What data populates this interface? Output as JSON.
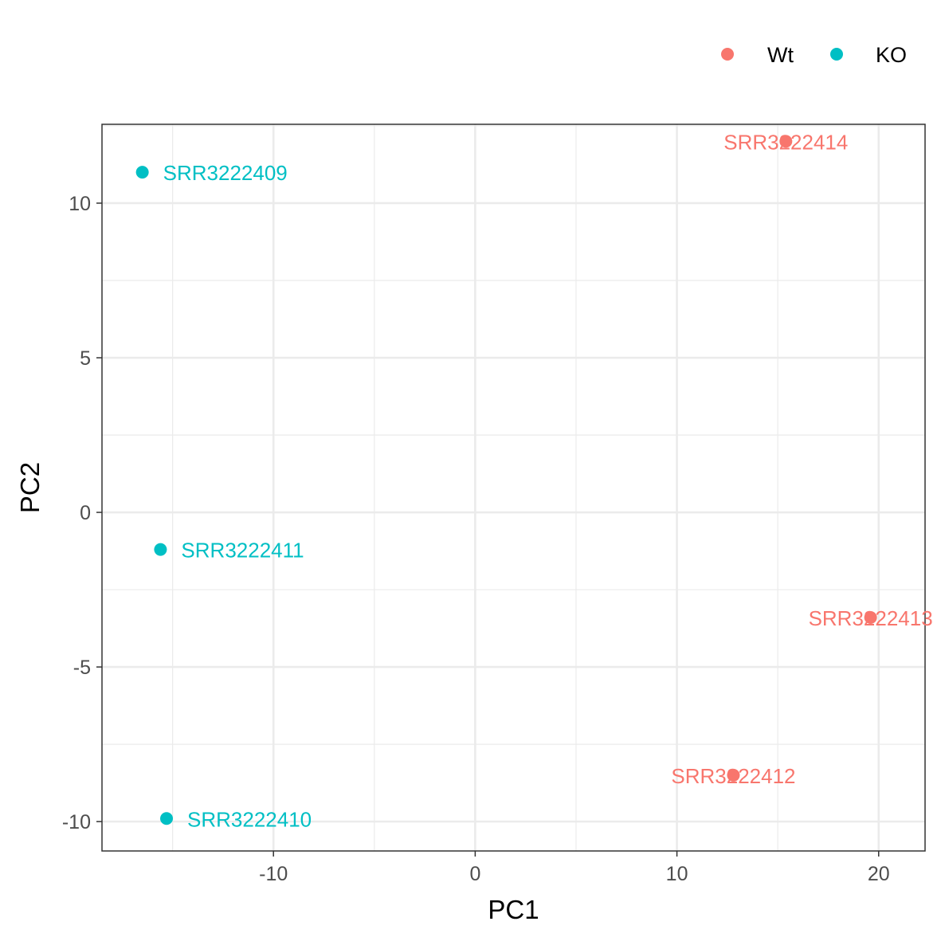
{
  "chart_data": {
    "type": "scatter",
    "xlabel": "PC1",
    "ylabel": "PC2",
    "xlim": [
      -18.5,
      22.3
    ],
    "ylim": [
      -10.95,
      12.55
    ],
    "x_ticks": [
      -10,
      0,
      10,
      20
    ],
    "y_ticks": [
      -10,
      -5,
      0,
      5,
      10
    ],
    "x_tick_labels": [
      "-10",
      "0",
      "10",
      "20"
    ],
    "y_tick_labels": [
      "-10",
      "-5",
      "0",
      "5",
      "10"
    ],
    "grid": true,
    "legend": {
      "position": "top-right"
    },
    "series": [
      {
        "name": "Wt",
        "color": "#F8766D",
        "points": [
          {
            "label": "SRR3222414",
            "x": 15.4,
            "y": 12.0
          },
          {
            "label": "SRR3222413",
            "x": 19.6,
            "y": -3.4
          },
          {
            "label": "SRR3222412",
            "x": 12.8,
            "y": -8.5
          }
        ]
      },
      {
        "name": "KO",
        "color": "#00BFC4",
        "points": [
          {
            "label": "SRR3222409",
            "x": -16.5,
            "y": 11.0
          },
          {
            "label": "SRR3222411",
            "x": -15.6,
            "y": -1.2
          },
          {
            "label": "SRR3222410",
            "x": -15.3,
            "y": -9.9
          }
        ]
      }
    ]
  }
}
